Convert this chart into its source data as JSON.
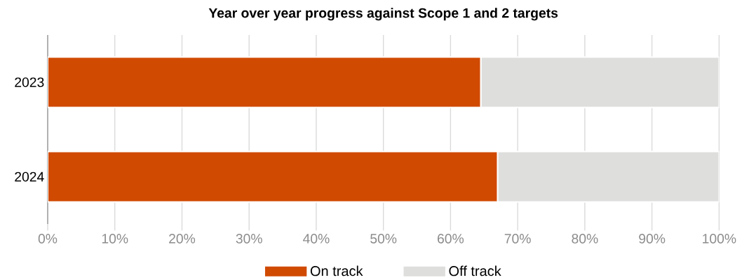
{
  "chart_data": {
    "type": "bar",
    "orientation": "horizontal",
    "stacked": true,
    "title": "Year over year progress against Scope 1 and 2 targets",
    "categories": [
      "2023",
      "2024"
    ],
    "series": [
      {
        "name": "On track",
        "color": "#d04a02",
        "values": [
          64.5,
          67
        ]
      },
      {
        "name": "Off track",
        "color": "#dededd",
        "values": [
          35.5,
          33
        ]
      }
    ],
    "xlim": [
      0,
      100
    ],
    "xticks": [
      {
        "value": 0,
        "label": "0%"
      },
      {
        "value": 10,
        "label": "10%"
      },
      {
        "value": 20,
        "label": "20%"
      },
      {
        "value": 30,
        "label": "30%"
      },
      {
        "value": 40,
        "label": "40%"
      },
      {
        "value": 50,
        "label": "50%"
      },
      {
        "value": 60,
        "label": "60%"
      },
      {
        "value": 70,
        "label": "70%"
      },
      {
        "value": 80,
        "label": "80%"
      },
      {
        "value": 90,
        "label": "90%"
      },
      {
        "value": 100,
        "label": "100%"
      }
    ],
    "grid": "x",
    "legend": "bottom"
  }
}
